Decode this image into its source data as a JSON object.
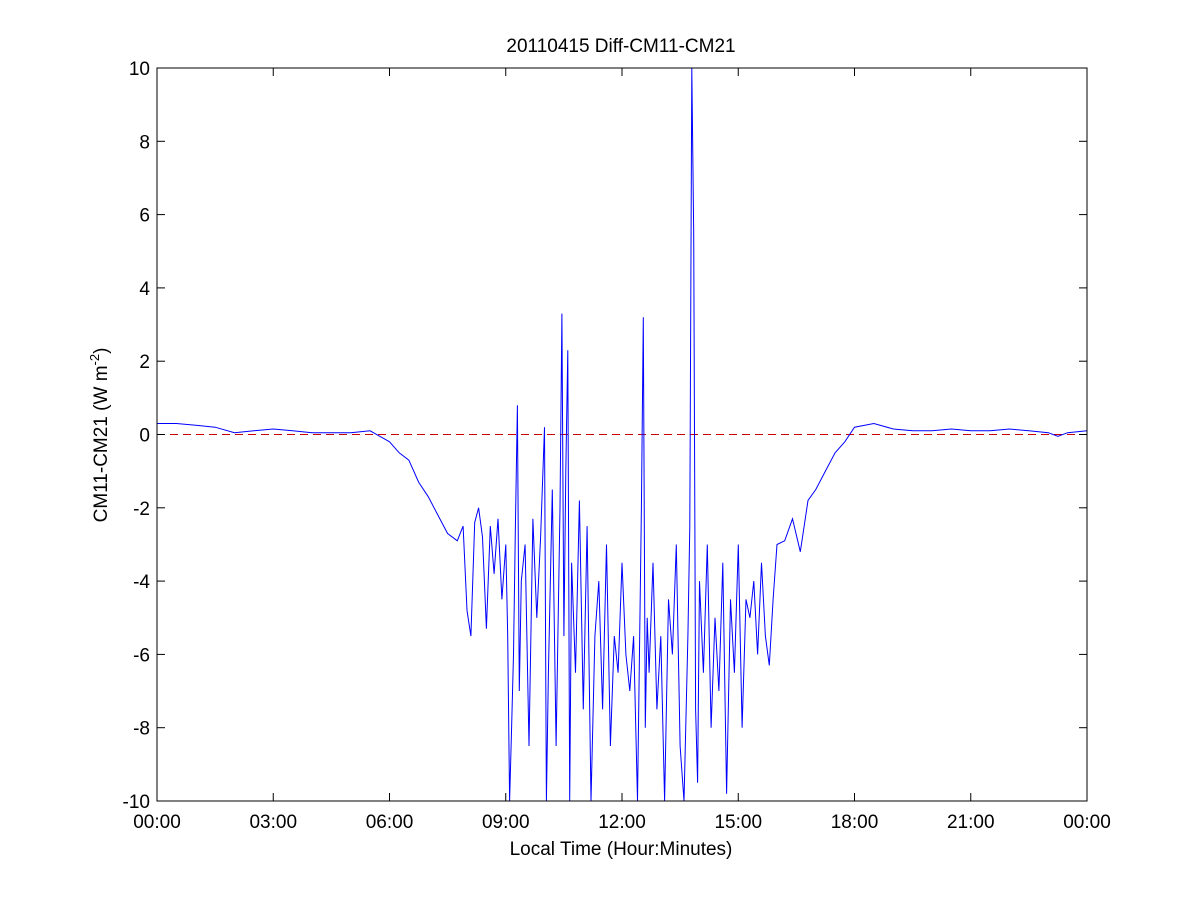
{
  "chart_data": {
    "type": "line",
    "title": "20110415 Diff-CM11-CM21",
    "xlabel": "Local Time (Hour:Minutes)",
    "ylabel": {
      "base": "CM11-CM21 (W m",
      "superscript": "-2",
      "suffix": ")"
    },
    "xlim": [
      0,
      24
    ],
    "ylim": [
      -10,
      10
    ],
    "x_ticks": [
      0,
      3,
      6,
      9,
      12,
      15,
      18,
      21,
      24
    ],
    "x_tick_labels": [
      "00:00",
      "03:00",
      "06:00",
      "09:00",
      "12:00",
      "15:00",
      "18:00",
      "21:00",
      "00:00"
    ],
    "y_ticks": [
      -10,
      -8,
      -6,
      -4,
      -2,
      0,
      2,
      4,
      6,
      8,
      10
    ],
    "y_tick_labels": [
      "-10",
      "-8",
      "-6",
      "-4",
      "-2",
      "0",
      "2",
      "4",
      "6",
      "8",
      "10"
    ],
    "grid": false,
    "reference_line": {
      "y": 0,
      "style": "dashed",
      "color": "#cc0000"
    },
    "series": [
      {
        "color": "#0000ff",
        "x": [
          0.0,
          0.5,
          1.0,
          1.5,
          2.0,
          2.5,
          3.0,
          3.5,
          4.0,
          4.5,
          5.0,
          5.5,
          6.0,
          6.25,
          6.5,
          6.75,
          7.0,
          7.25,
          7.5,
          7.75,
          7.9,
          8.0,
          8.1,
          8.2,
          8.3,
          8.4,
          8.5,
          8.6,
          8.7,
          8.8,
          8.9,
          9.0,
          9.05,
          9.1,
          9.15,
          9.2,
          9.25,
          9.3,
          9.35,
          9.4,
          9.5,
          9.6,
          9.7,
          9.8,
          9.9,
          10.0,
          10.05,
          10.1,
          10.2,
          10.3,
          10.4,
          10.45,
          10.5,
          10.55,
          10.6,
          10.65,
          10.7,
          10.8,
          10.9,
          11.0,
          11.1,
          11.2,
          11.3,
          11.4,
          11.5,
          11.6,
          11.7,
          11.8,
          11.9,
          12.0,
          12.1,
          12.2,
          12.3,
          12.4,
          12.5,
          12.55,
          12.6,
          12.65,
          12.7,
          12.8,
          12.9,
          13.0,
          13.1,
          13.2,
          13.3,
          13.4,
          13.5,
          13.6,
          13.7,
          13.75,
          13.8,
          13.85,
          13.9,
          13.95,
          14.0,
          14.1,
          14.2,
          14.3,
          14.4,
          14.5,
          14.6,
          14.7,
          14.8,
          14.9,
          15.0,
          15.1,
          15.2,
          15.3,
          15.4,
          15.5,
          15.6,
          15.7,
          15.8,
          15.9,
          16.0,
          16.2,
          16.4,
          16.6,
          16.8,
          17.0,
          17.25,
          17.5,
          17.75,
          18.0,
          18.5,
          19.0,
          19.5,
          20.0,
          20.5,
          21.0,
          21.5,
          22.0,
          22.5,
          23.0,
          23.25,
          23.5,
          24.0
        ],
        "y": [
          0.3,
          0.3,
          0.25,
          0.2,
          0.05,
          0.1,
          0.15,
          0.1,
          0.05,
          0.05,
          0.05,
          0.1,
          -0.2,
          -0.5,
          -0.7,
          -1.3,
          -1.7,
          -2.2,
          -2.7,
          -2.9,
          -2.5,
          -4.8,
          -5.5,
          -2.4,
          -2.0,
          -2.8,
          -5.3,
          -2.5,
          -3.8,
          -2.3,
          -4.5,
          -3.0,
          -5.5,
          -10.0,
          -8.0,
          -6.0,
          -2.5,
          0.8,
          -7.0,
          -4.0,
          -3.0,
          -8.5,
          -2.3,
          -5.0,
          -2.8,
          0.2,
          -10.0,
          -6.5,
          -1.5,
          -8.5,
          -2.0,
          3.3,
          -5.5,
          -1.0,
          2.3,
          -10.0,
          -3.5,
          -6.5,
          -1.8,
          -7.5,
          -2.5,
          -10.0,
          -5.5,
          -4.0,
          -7.5,
          -3.0,
          -8.5,
          -5.5,
          -6.5,
          -3.5,
          -6.0,
          -7.0,
          -5.5,
          -10.0,
          -2.0,
          3.2,
          -8.0,
          -5.0,
          -6.5,
          -3.5,
          -7.5,
          -5.5,
          -10.0,
          -4.5,
          -6.0,
          -3.0,
          -8.5,
          -10.0,
          -5.5,
          -2.5,
          10.0,
          5.5,
          -7.5,
          -9.5,
          -4.0,
          -6.5,
          -3.0,
          -8.0,
          -5.0,
          -7.0,
          -3.5,
          -9.8,
          -4.5,
          -6.5,
          -3.0,
          -8.0,
          -4.5,
          -5.0,
          -4.0,
          -6.0,
          -3.5,
          -5.5,
          -6.3,
          -4.5,
          -3.0,
          -2.9,
          -2.3,
          -3.2,
          -1.8,
          -1.5,
          -1.0,
          -0.5,
          -0.2,
          0.2,
          0.3,
          0.15,
          0.1,
          0.1,
          0.15,
          0.1,
          0.1,
          0.15,
          0.1,
          0.05,
          -0.05,
          0.05,
          0.1
        ]
      }
    ]
  }
}
